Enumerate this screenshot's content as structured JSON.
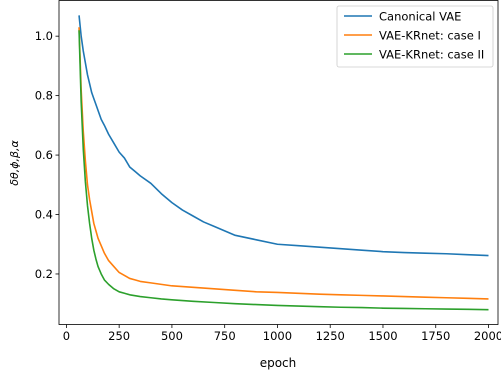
{
  "chart_data": {
    "type": "line",
    "xlabel": "epoch",
    "ylabel": "δθ,ϕ,β,α",
    "xlim": [
      -35,
      2045
    ],
    "ylim": [
      0.03,
      1.12
    ],
    "xticks": [
      0,
      250,
      500,
      750,
      1000,
      1250,
      1500,
      1750,
      2000
    ],
    "yticks": [
      0.2,
      0.4,
      0.6,
      0.8,
      1.0
    ],
    "ytick_labels": [
      "0.2",
      "0.4",
      "0.6",
      "0.8",
      "1.0"
    ],
    "grid": false,
    "legend_position": "top-right",
    "series": [
      {
        "name": "Canonical VAE",
        "color": "#1f77b4",
        "x": [
          60,
          70,
          80,
          90,
          100,
          110,
          120,
          130,
          140,
          150,
          165,
          180,
          200,
          225,
          250,
          275,
          300,
          325,
          350,
          400,
          450,
          500,
          550,
          600,
          650,
          700,
          750,
          800,
          900,
          1000,
          1100,
          1200,
          1300,
          1400,
          1500,
          1600,
          1700,
          1800,
          1900,
          2000
        ],
        "y": [
          1.07,
          1.0,
          0.95,
          0.91,
          0.87,
          0.84,
          0.81,
          0.79,
          0.77,
          0.75,
          0.72,
          0.7,
          0.67,
          0.64,
          0.61,
          0.59,
          0.56,
          0.545,
          0.53,
          0.505,
          0.47,
          0.44,
          0.415,
          0.395,
          0.375,
          0.36,
          0.345,
          0.33,
          0.315,
          0.3,
          0.295,
          0.29,
          0.285,
          0.28,
          0.275,
          0.272,
          0.27,
          0.268,
          0.265,
          0.262
        ]
      },
      {
        "name": "VAE-KRnet: case I",
        "color": "#ff7f0e",
        "x": [
          60,
          70,
          80,
          90,
          100,
          110,
          120,
          130,
          140,
          150,
          165,
          180,
          200,
          225,
          250,
          275,
          300,
          325,
          350,
          400,
          450,
          500,
          600,
          700,
          800,
          900,
          1000,
          1100,
          1200,
          1300,
          1400,
          1500,
          1600,
          1700,
          1800,
          1900,
          2000
        ],
        "y": [
          1.03,
          0.82,
          0.68,
          0.58,
          0.5,
          0.45,
          0.41,
          0.37,
          0.345,
          0.32,
          0.295,
          0.27,
          0.245,
          0.225,
          0.205,
          0.195,
          0.185,
          0.18,
          0.175,
          0.17,
          0.165,
          0.16,
          0.155,
          0.15,
          0.145,
          0.14,
          0.138,
          0.135,
          0.132,
          0.13,
          0.128,
          0.126,
          0.124,
          0.122,
          0.12,
          0.118,
          0.116
        ]
      },
      {
        "name": "VAE-KRnet: case II",
        "color": "#2ca02c",
        "x": [
          60,
          70,
          80,
          90,
          100,
          110,
          120,
          130,
          140,
          150,
          165,
          180,
          200,
          225,
          250,
          275,
          300,
          325,
          350,
          400,
          450,
          500,
          600,
          700,
          800,
          900,
          1000,
          1100,
          1200,
          1300,
          1400,
          1500,
          1600,
          1700,
          1800,
          1900,
          2000
        ],
        "y": [
          1.02,
          0.78,
          0.62,
          0.51,
          0.43,
          0.37,
          0.32,
          0.28,
          0.25,
          0.225,
          0.2,
          0.18,
          0.165,
          0.15,
          0.14,
          0.135,
          0.13,
          0.127,
          0.124,
          0.12,
          0.116,
          0.113,
          0.108,
          0.104,
          0.1,
          0.097,
          0.094,
          0.092,
          0.09,
          0.088,
          0.087,
          0.085,
          0.084,
          0.083,
          0.082,
          0.081,
          0.08
        ]
      }
    ]
  }
}
